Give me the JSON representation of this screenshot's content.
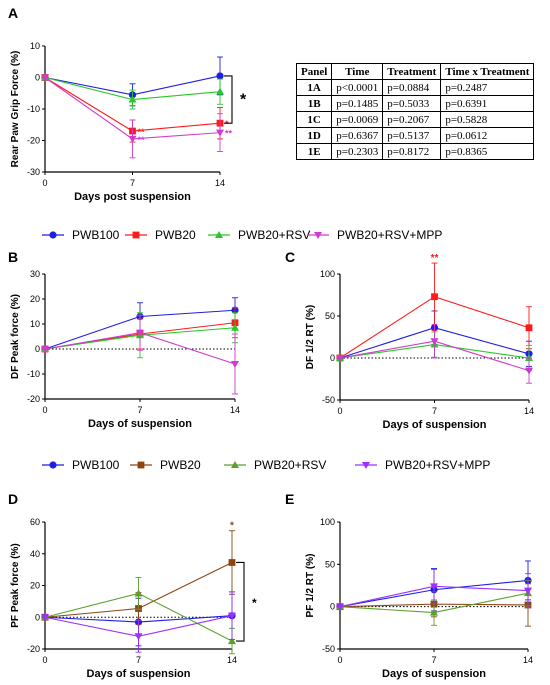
{
  "chart_data": [
    {
      "panel": "A",
      "type": "line",
      "x": [
        0,
        7,
        14
      ],
      "xlabel": "Days post suspension",
      "ylabel": "Rear Paw Grip Force (%)",
      "ylim": [
        -30,
        10
      ],
      "yticks": [
        -30,
        -20,
        -10,
        0,
        10
      ],
      "zero_line": false,
      "series": [
        {
          "name": "PWB100",
          "color": "#1f1fe0",
          "marker": "circle",
          "values": [
            0,
            -5.5,
            0.5
          ],
          "errors": [
            0,
            3.5,
            6
          ]
        },
        {
          "name": "PWB20",
          "color": "#ff1a1a",
          "marker": "square",
          "values": [
            0,
            -17,
            -14.5
          ],
          "errors": [
            0,
            3.5,
            5
          ],
          "stars": [
            "",
            "**",
            "*"
          ]
        },
        {
          "name": "PWB20+RSV",
          "color": "#27c827",
          "marker": "triangle-up",
          "values": [
            0,
            -7,
            -4.5
          ],
          "errors": [
            0,
            3,
            4
          ]
        },
        {
          "name": "PWB20+RSV+MPP",
          "color": "#d13ad1",
          "marker": "triangle-down",
          "values": [
            0,
            -19.5,
            -17.5
          ],
          "errors": [
            0,
            6,
            6
          ],
          "stars": [
            "",
            "**",
            "**"
          ]
        }
      ],
      "bracket": {
        "x": 14,
        "from": 0.5,
        "to": -14.5,
        "label": "*"
      }
    },
    {
      "panel": "B",
      "type": "line",
      "x": [
        0,
        7,
        14
      ],
      "xlabel": "Days of suspension",
      "ylabel": "DF Peak force (%)",
      "ylim": [
        -20,
        30
      ],
      "yticks": [
        -20,
        -10,
        0,
        10,
        20,
        30
      ],
      "zero_line": true,
      "series": [
        {
          "name": "PWB100",
          "color": "#1f1fe0",
          "marker": "circle",
          "values": [
            0,
            13,
            15.5
          ],
          "errors": [
            0,
            5.5,
            5
          ]
        },
        {
          "name": "PWB20",
          "color": "#ff1a1a",
          "marker": "square",
          "values": [
            0,
            6,
            10.5
          ],
          "errors": [
            0,
            6,
            6
          ]
        },
        {
          "name": "PWB20+RSV",
          "color": "#27c827",
          "marker": "triangle-up",
          "values": [
            0,
            5.5,
            8.5
          ],
          "errors": [
            0,
            9,
            6
          ]
        },
        {
          "name": "PWB20+RSV+MPP",
          "color": "#d13ad1",
          "marker": "triangle-down",
          "values": [
            0,
            6.5,
            -6
          ],
          "errors": [
            0,
            7,
            12
          ]
        }
      ]
    },
    {
      "panel": "C",
      "type": "line",
      "x": [
        0,
        7,
        14
      ],
      "xlabel": "Days of suspension",
      "ylabel": "DF 1/2 RT (%)",
      "ylim": [
        -50,
        100
      ],
      "yticks": [
        -50,
        0,
        50,
        100
      ],
      "zero_line": true,
      "series": [
        {
          "name": "PWB100",
          "color": "#1f1fe0",
          "marker": "circle",
          "values": [
            0,
            36,
            5
          ],
          "errors": [
            0,
            20,
            15
          ]
        },
        {
          "name": "PWB20",
          "color": "#ff1a1a",
          "marker": "square",
          "values": [
            0,
            73,
            36
          ],
          "errors": [
            0,
            40,
            25
          ],
          "stars": [
            "",
            "**",
            ""
          ]
        },
        {
          "name": "PWB20+RSV",
          "color": "#27c827",
          "marker": "triangle-up",
          "values": [
            0,
            16,
            0
          ],
          "errors": [
            0,
            15,
            15
          ]
        },
        {
          "name": "PWB20+RSV+MPP",
          "color": "#d13ad1",
          "marker": "triangle-down",
          "values": [
            0,
            20,
            -15
          ],
          "errors": [
            0,
            20,
            15
          ]
        }
      ]
    },
    {
      "panel": "D",
      "type": "line",
      "x": [
        0,
        7,
        14
      ],
      "xlabel": "Days of suspension",
      "ylabel": "PF Peak force (%)",
      "ylim": [
        -20,
        60
      ],
      "yticks": [
        -20,
        0,
        20,
        40,
        60
      ],
      "zero_line": true,
      "series": [
        {
          "name": "PWB100",
          "color": "#1f1fe0",
          "marker": "circle",
          "values": [
            0,
            -3,
            1
          ],
          "errors": [
            0,
            15,
            15
          ]
        },
        {
          "name": "PWB20",
          "color": "#8b4513",
          "marker": "square",
          "values": [
            0,
            5.5,
            34.5
          ],
          "errors": [
            0,
            10,
            20
          ],
          "stars": [
            "",
            "",
            "*"
          ]
        },
        {
          "name": "PWB20+RSV",
          "color": "#5aa02c",
          "marker": "triangle-up",
          "values": [
            0,
            15,
            -15
          ],
          "errors": [
            0,
            10,
            8
          ]
        },
        {
          "name": "PWB20+RSV+MPP",
          "color": "#9b30ff",
          "marker": "triangle-down",
          "values": [
            0,
            -12,
            1
          ],
          "errors": [
            0,
            10,
            15
          ]
        }
      ],
      "bracket": {
        "x": 14,
        "from": 34.5,
        "to": -15,
        "label": "*"
      }
    },
    {
      "panel": "E",
      "type": "line",
      "x": [
        0,
        7,
        14
      ],
      "xlabel": "Days of suspension",
      "ylabel": "PF 1/2 RT (%)",
      "ylim": [
        -50,
        100
      ],
      "yticks": [
        -50,
        0,
        50,
        100
      ],
      "zero_line": true,
      "series": [
        {
          "name": "PWB100",
          "color": "#1f1fe0",
          "marker": "circle",
          "values": [
            0,
            20,
            31
          ],
          "errors": [
            0,
            25,
            23
          ]
        },
        {
          "name": "PWB20",
          "color": "#8b4513",
          "marker": "square",
          "values": [
            0,
            3,
            2
          ],
          "errors": [
            0,
            15,
            25
          ]
        },
        {
          "name": "PWB20+RSV",
          "color": "#5aa02c",
          "marker": "triangle-up",
          "values": [
            0,
            -7,
            16
          ],
          "errors": [
            0,
            15,
            15
          ]
        },
        {
          "name": "PWB20+RSV+MPP",
          "color": "#9b30ff",
          "marker": "triangle-down",
          "values": [
            0,
            24,
            19
          ],
          "errors": [
            0,
            20,
            20
          ]
        }
      ]
    }
  ],
  "legends": [
    {
      "items": [
        {
          "label": "PWB100",
          "color": "#1f1fe0",
          "marker": "circle"
        },
        {
          "label": "PWB20",
          "color": "#ff1a1a",
          "marker": "square"
        },
        {
          "label": "PWB20+RSV",
          "color": "#27c827",
          "marker": "triangle-up"
        },
        {
          "label": "PWB20+RSV+MPP",
          "color": "#d13ad1",
          "marker": "triangle-down"
        }
      ]
    },
    {
      "items": [
        {
          "label": "PWB100",
          "color": "#1f1fe0",
          "marker": "circle"
        },
        {
          "label": "PWB20",
          "color": "#8b4513",
          "marker": "square"
        },
        {
          "label": "PWB20+RSV",
          "color": "#5aa02c",
          "marker": "triangle-up"
        },
        {
          "label": "PWB20+RSV+MPP",
          "color": "#9b30ff",
          "marker": "triangle-down"
        }
      ]
    }
  ],
  "stats_table": {
    "headers": [
      "Panel",
      "Time",
      "Treatment",
      "Time x Treatment"
    ],
    "rows": [
      [
        "1A",
        "p<0.0001",
        "p=0.0884",
        "p=0.2487"
      ],
      [
        "1B",
        "p=0.1485",
        "p=0.5033",
        "p=0.6391"
      ],
      [
        "1C",
        "p=0.0069",
        "p=0.2067",
        "p=0.5828"
      ],
      [
        "1D",
        "p=0.6367",
        "p=0.5137",
        "p=0.0612"
      ],
      [
        "1E",
        "p=0.2303",
        "p=0.8172",
        "p=0.8365"
      ]
    ]
  }
}
